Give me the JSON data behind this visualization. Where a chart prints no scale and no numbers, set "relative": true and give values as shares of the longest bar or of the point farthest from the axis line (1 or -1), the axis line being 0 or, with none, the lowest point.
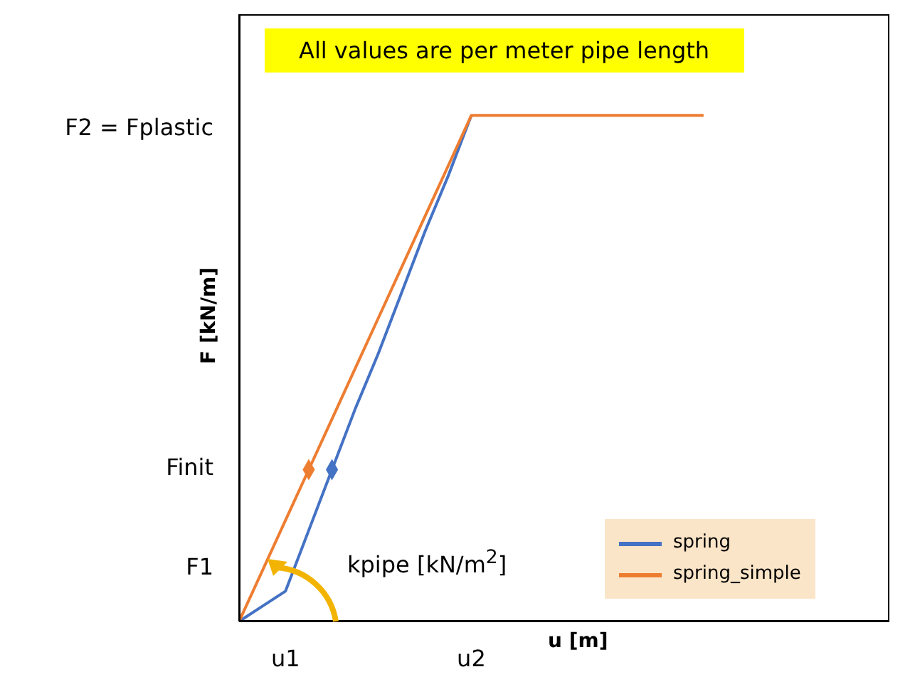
{
  "chart_data": {
    "type": "line",
    "relative": true,
    "xlabel": "u [m]",
    "ylabel": "F [kN/m]",
    "categories": [
      null,
      null,
      "u1",
      null,
      null,
      null,
      null,
      null,
      null,
      null,
      "u2",
      null,
      null,
      null,
      null,
      null,
      null,
      null,
      null,
      null,
      null,
      null,
      null,
      null,
      null,
      null,
      null,
      null,
      null
    ],
    "series": [
      {
        "name": "spring",
        "color": "#4472c4",
        "values": [
          0,
          0.03,
          0.06,
          0.18,
          0.3,
          0.42,
          0.53,
          0.65,
          0.77,
          0.88,
          1,
          null,
          null,
          null,
          null,
          null,
          null,
          null,
          null,
          null,
          null,
          null,
          null,
          null,
          null,
          null,
          null,
          null,
          null
        ],
        "marker": "none"
      },
      {
        "name": "spring_simple",
        "color": "#ed7d31",
        "values": [
          0,
          0.1,
          0.2,
          0.3,
          0.4,
          0.5,
          0.6,
          0.7,
          0.8,
          0.9,
          1,
          1,
          1,
          1,
          1,
          1,
          1,
          1,
          1,
          1,
          1,
          null,
          null,
          null,
          null,
          null,
          null,
          null,
          null
        ],
        "marker": "none"
      },
      {
        "type": "scatter",
        "color": "#4472c4",
        "values": [
          null,
          null,
          null,
          null,
          0.3,
          null,
          null,
          null,
          null,
          null,
          null,
          null,
          null,
          null,
          null,
          null,
          null,
          null,
          null,
          null,
          null,
          null,
          null,
          null,
          null,
          null,
          null,
          null,
          null
        ],
        "marker": "diamond"
      },
      {
        "type": "scatter",
        "color": "#ed7d31",
        "values": [
          null,
          null,
          null,
          0.3,
          null,
          null,
          null,
          null,
          null,
          null,
          null,
          null,
          null,
          null,
          null,
          null,
          null,
          null,
          null,
          null,
          null,
          null,
          null,
          null,
          null,
          null,
          null,
          null,
          null
        ],
        "marker": "diamond"
      }
    ],
    "annotations": [
      "All values are per meter pipe length",
      "kpipe [kN/m$^{2}$]",
      "F1",
      "Finit",
      "F2 = Fplastic"
    ],
    "legend": "bottom right",
    "line_style": "solid"
  }
}
